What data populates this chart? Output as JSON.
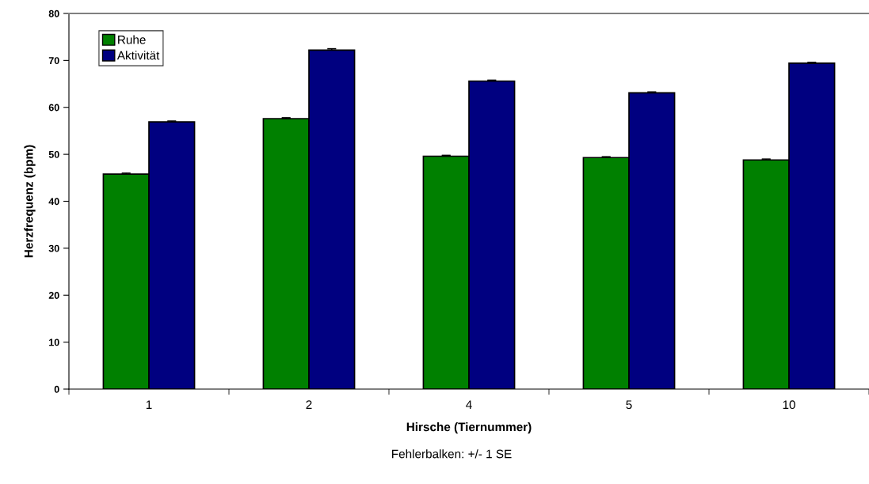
{
  "chart_data": {
    "type": "bar",
    "xlabel": "Hirsche (Tiernummer)",
    "ylabel": "Herzfrequenz (bpm)",
    "categories": [
      "1",
      "2",
      "4",
      "5",
      "10"
    ],
    "series": [
      {
        "name": "Ruhe",
        "color": "#008000",
        "values": [
          45.8,
          57.6,
          49.6,
          49.3,
          48.8
        ],
        "errors": [
          [
            45.8,
            46.0
          ],
          [
            57.6,
            57.8
          ],
          [
            49.6,
            49.8
          ],
          [
            49.3,
            49.5
          ],
          [
            48.8,
            49.0
          ]
        ]
      },
      {
        "name": "Aktivität",
        "color": "#000080",
        "values": [
          56.9,
          72.2,
          65.6,
          63.1,
          69.4
        ],
        "errors": [
          [
            56.9,
            57.1
          ],
          [
            72.2,
            72.5
          ],
          [
            65.6,
            65.8
          ],
          [
            63.1,
            63.3
          ],
          [
            69.4,
            69.6
          ]
        ]
      }
    ],
    "ylim": [
      0,
      80
    ],
    "yticks": [
      0,
      10,
      20,
      30,
      40,
      50,
      60,
      70,
      80
    ],
    "grid": false,
    "legend": "top left",
    "annotations": [
      "Fehlerbalken: +/- 1 SE"
    ]
  }
}
